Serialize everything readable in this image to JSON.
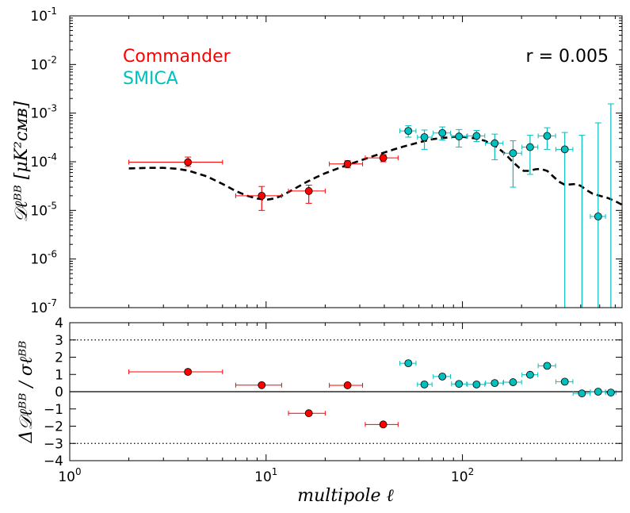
{
  "chart_data": [
    {
      "type": "scatter",
      "panel": "top",
      "ylabel": "𝒟ℓᴮᴮ [μK²ᴄᴍʙ]",
      "xscale": "log",
      "yscale": "log",
      "xlim": [
        1,
        650
      ],
      "ylim": [
        1e-07,
        0.1
      ],
      "y_ticks": [
        {
          "value": 1e-07,
          "base": "10",
          "exp": "-7"
        },
        {
          "value": 1e-06,
          "base": "10",
          "exp": "-6"
        },
        {
          "value": 1e-05,
          "base": "10",
          "exp": "-5"
        },
        {
          "value": 0.0001,
          "base": "10",
          "exp": "-4"
        },
        {
          "value": 0.001,
          "base": "10",
          "exp": "-3"
        },
        {
          "value": 0.01,
          "base": "10",
          "exp": "-2"
        },
        {
          "value": 0.1,
          "base": "10",
          "exp": "-1"
        }
      ],
      "annotation": "r = 0.005",
      "legend_position": "top-left",
      "series": [
        {
          "name": "Commander",
          "color": "#ff0000",
          "points": [
            {
              "x": 4.0,
              "y": 9.8e-05,
              "xlo": 2.0,
              "xhi": 6.0,
              "ylo": 8e-05,
              "yhi": 0.000125
            },
            {
              "x": 9.5,
              "y": 2e-05,
              "xlo": 7.0,
              "xhi": 12.0,
              "ylo": 1e-05,
              "yhi": 3.1e-05
            },
            {
              "x": 16.5,
              "y": 2.5e-05,
              "xlo": 13.0,
              "xhi": 20.0,
              "ylo": 1.4e-05,
              "yhi": 3.3e-05
            },
            {
              "x": 26.0,
              "y": 9e-05,
              "xlo": 21.0,
              "xhi": 31.0,
              "ylo": 7.5e-05,
              "yhi": 0.000105
            },
            {
              "x": 39.5,
              "y": 0.00012,
              "xlo": 32.0,
              "xhi": 47.0,
              "ylo": 0.0001,
              "yhi": 0.00014
            }
          ]
        },
        {
          "name": "SMICA",
          "color": "#00bfbf",
          "points": [
            {
              "x": 53,
              "y": 0.00043,
              "xlo": 48,
              "xhi": 58,
              "ylo": 0.00032,
              "yhi": 0.00055
            },
            {
              "x": 64,
              "y": 0.00032,
              "xlo": 59,
              "xhi": 70,
              "ylo": 0.00018,
              "yhi": 0.00045
            },
            {
              "x": 79,
              "y": 0.00039,
              "xlo": 71,
              "xhi": 87,
              "ylo": 0.00028,
              "yhi": 0.00052
            },
            {
              "x": 96,
              "y": 0.00033,
              "xlo": 88,
              "xhi": 105,
              "ylo": 0.0002,
              "yhi": 0.00046
            },
            {
              "x": 118,
              "y": 0.00034,
              "xlo": 106,
              "xhi": 130,
              "ylo": 0.00026,
              "yhi": 0.00044
            },
            {
              "x": 146,
              "y": 0.00024,
              "xlo": 131,
              "xhi": 161,
              "ylo": 0.00011,
              "yhi": 0.00037
            },
            {
              "x": 181,
              "y": 0.00015,
              "xlo": 162,
              "xhi": 200,
              "ylo": 3e-05,
              "yhi": 0.00027
            },
            {
              "x": 221,
              "y": 0.0002,
              "xlo": 201,
              "xhi": 242,
              "ylo": 5.5e-05,
              "yhi": 0.00035
            },
            {
              "x": 270,
              "y": 0.00034,
              "xlo": 243,
              "xhi": 298,
              "ylo": 0.00018,
              "yhi": 0.0005
            },
            {
              "x": 332,
              "y": 0.00018,
              "xlo": 299,
              "xhi": 365,
              "ylo": 1e-07,
              "yhi": 0.0004
            },
            {
              "x": 406,
              "y": null,
              "ylo": 1e-07,
              "yhi": 0.00035
            },
            {
              "x": 491,
              "y": 7.5e-06,
              "xlo": 448,
              "xhi": 535,
              "ylo": 1e-07,
              "yhi": 0.00063
            },
            {
              "x": 570,
              "y": null,
              "ylo": 1e-07,
              "yhi": 0.00155
            }
          ]
        },
        {
          "name": "",
          "style": "dashed",
          "color": "#000000",
          "x": [
            2,
            2.5,
            3,
            3.5,
            4,
            5,
            6,
            7,
            8,
            9,
            10,
            11,
            12,
            14,
            16,
            18,
            20,
            23,
            26,
            30,
            35,
            40,
            45,
            50,
            60,
            70,
            80,
            90,
            100,
            115,
            130,
            150,
            165,
            180,
            195,
            205,
            220,
            235,
            250,
            270,
            290,
            310,
            330,
            350,
            380,
            400,
            430,
            460,
            500,
            550,
            600,
            650
          ],
          "y": [
            7.3e-05,
            7.5e-05,
            7.5e-05,
            7.2e-05,
            6.6e-05,
            5e-05,
            3.5e-05,
            2.5e-05,
            2e-05,
            1.75e-05,
            1.65e-05,
            1.75e-05,
            2e-05,
            2.8e-05,
            3.8e-05,
            4.8e-05,
            5.8e-05,
            7.2e-05,
            8.6e-05,
            0.000105,
            0.00013,
            0.000155,
            0.00018,
            0.000205,
            0.00025,
            0.00029,
            0.00031,
            0.000325,
            0.000325,
            0.000305,
            0.00027,
            0.0002,
            0.000145,
            0.0001,
            7.5e-05,
            6.5e-05,
            6.5e-05,
            7e-05,
            7.1e-05,
            6.5e-05,
            5e-05,
            3.9e-05,
            3.4e-05,
            3.4e-05,
            3.5e-05,
            3.2e-05,
            2.6e-05,
            2.2e-05,
            2e-05,
            1.8e-05,
            1.55e-05,
            1.3e-05
          ]
        }
      ]
    },
    {
      "type": "scatter",
      "panel": "bottom",
      "ylabel": "Δ𝒟ℓᴮᴮ / σℓᴮᴮ",
      "xlabel": "multipole ℓ",
      "xscale": "log",
      "xlim": [
        1,
        650
      ],
      "ylim": [
        -4,
        4
      ],
      "y_tick_labels": [
        "4",
        "3",
        "2",
        "1",
        "0",
        "−1",
        "−2",
        "−3",
        "−4"
      ],
      "y_tick_values": [
        4,
        3,
        2,
        1,
        0,
        -1,
        -2,
        -3,
        -4
      ],
      "x_ticks": [
        {
          "value": 1,
          "base": "10",
          "exp": "0"
        },
        {
          "value": 10,
          "base": "10",
          "exp": "1"
        },
        {
          "value": 100,
          "base": "10",
          "exp": "2"
        }
      ],
      "reference_lines": [
        {
          "y": 3,
          "style": "dotted"
        },
        {
          "y": 0,
          "style": "solid"
        },
        {
          "y": -3,
          "style": "dotted"
        }
      ],
      "series": [
        {
          "name": "Commander",
          "color": "#ff0000",
          "points": [
            {
              "x": 4.0,
              "y": 1.15,
              "xlo": 2.0,
              "xhi": 6.0
            },
            {
              "x": 9.5,
              "y": 0.38,
              "xlo": 7.0,
              "xhi": 12.0
            },
            {
              "x": 16.5,
              "y": -1.25,
              "xlo": 13.0,
              "xhi": 20.0
            },
            {
              "x": 26.0,
              "y": 0.37,
              "xlo": 21.0,
              "xhi": 31.0
            },
            {
              "x": 39.5,
              "y": -1.9,
              "xlo": 32.0,
              "xhi": 47.0
            }
          ]
        },
        {
          "name": "SMICA",
          "color": "#00bfbf",
          "points": [
            {
              "x": 53,
              "y": 1.65,
              "xlo": 48,
              "xhi": 58
            },
            {
              "x": 64,
              "y": 0.42,
              "xlo": 59,
              "xhi": 70
            },
            {
              "x": 79,
              "y": 0.88,
              "xlo": 71,
              "xhi": 87
            },
            {
              "x": 96,
              "y": 0.45,
              "xlo": 88,
              "xhi": 105
            },
            {
              "x": 118,
              "y": 0.42,
              "xlo": 106,
              "xhi": 130
            },
            {
              "x": 146,
              "y": 0.5,
              "xlo": 131,
              "xhi": 161
            },
            {
              "x": 181,
              "y": 0.55,
              "xlo": 162,
              "xhi": 200
            },
            {
              "x": 221,
              "y": 0.98,
              "xlo": 201,
              "xhi": 242
            },
            {
              "x": 270,
              "y": 1.5,
              "xlo": 243,
              "xhi": 298
            },
            {
              "x": 332,
              "y": 0.58,
              "xlo": 299,
              "xhi": 365
            },
            {
              "x": 406,
              "y": -0.1,
              "xlo": 366,
              "xhi": 447
            },
            {
              "x": 491,
              "y": 0.0,
              "xlo": 448,
              "xhi": 535
            },
            {
              "x": 570,
              "y": -0.05,
              "xlo": 536,
              "xhi": 605
            }
          ]
        }
      ]
    }
  ]
}
